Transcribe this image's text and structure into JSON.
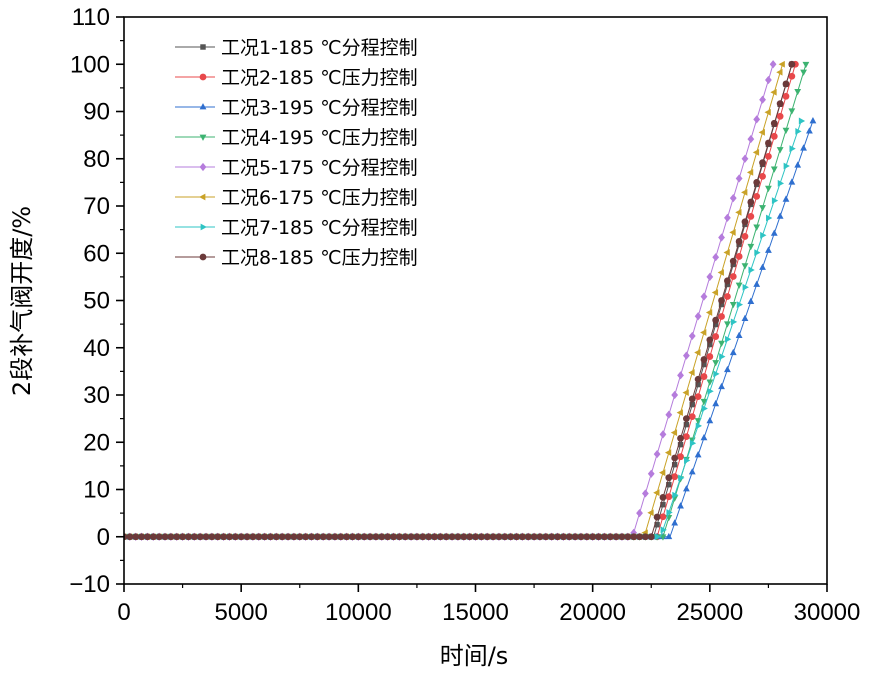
{
  "chart_data": {
    "type": "line",
    "title": "",
    "xlabel": "时间/s",
    "ylabel": "2段补气阀开度/%",
    "xlim": [
      0,
      30000
    ],
    "ylim": [
      -10,
      110
    ],
    "xticks": [
      "0",
      "5000",
      "10000",
      "15000",
      "20000",
      "25000",
      "30000"
    ],
    "yticks": [
      "-10",
      "0",
      "10",
      "20",
      "30",
      "40",
      "50",
      "60",
      "70",
      "80",
      "90",
      "100",
      "110"
    ],
    "grid": false,
    "legend_position": "top-left",
    "marker_spacing": 250,
    "series": [
      {
        "name": "工况1-185 ℃分程控制",
        "color": "#555555",
        "marker": "square",
        "points": [
          [
            0,
            0
          ],
          [
            22600,
            0
          ],
          [
            28500,
            100
          ]
        ]
      },
      {
        "name": "工况2-185 ℃压力控制",
        "color": "#e8484b",
        "marker": "circle",
        "points": [
          [
            0,
            0
          ],
          [
            22750,
            0
          ],
          [
            28650,
            100
          ]
        ]
      },
      {
        "name": "工况3-195 ℃分程控制",
        "color": "#2f6fcf",
        "marker": "triangle-up",
        "points": [
          [
            0,
            0
          ],
          [
            23300,
            0
          ],
          [
            29400,
            88
          ]
        ]
      },
      {
        "name": "工况4-195 ℃压力控制",
        "color": "#3cb371",
        "marker": "triangle-down",
        "points": [
          [
            0,
            0
          ],
          [
            23000,
            0
          ],
          [
            29100,
            100
          ]
        ]
      },
      {
        "name": "工况5-175 ℃分程控制",
        "color": "#b57cdc",
        "marker": "diamond",
        "points": [
          [
            0,
            0
          ],
          [
            21700,
            0
          ],
          [
            27700,
            100
          ]
        ]
      },
      {
        "name": "工况6-175 ℃压力控制",
        "color": "#c9a227",
        "marker": "triangle-left",
        "points": [
          [
            0,
            0
          ],
          [
            22200,
            0
          ],
          [
            28100,
            100
          ]
        ]
      },
      {
        "name": "工况7-185 ℃分程控制",
        "color": "#2ec4c4",
        "marker": "triangle-right",
        "points": [
          [
            0,
            0
          ],
          [
            22900,
            0
          ],
          [
            28900,
            88
          ]
        ]
      },
      {
        "name": "工况8-185 ℃压力控制",
        "color": "#6b3a3a",
        "marker": "circle",
        "points": [
          [
            0,
            0
          ],
          [
            22500,
            0
          ],
          [
            28500,
            100
          ]
        ]
      }
    ]
  }
}
